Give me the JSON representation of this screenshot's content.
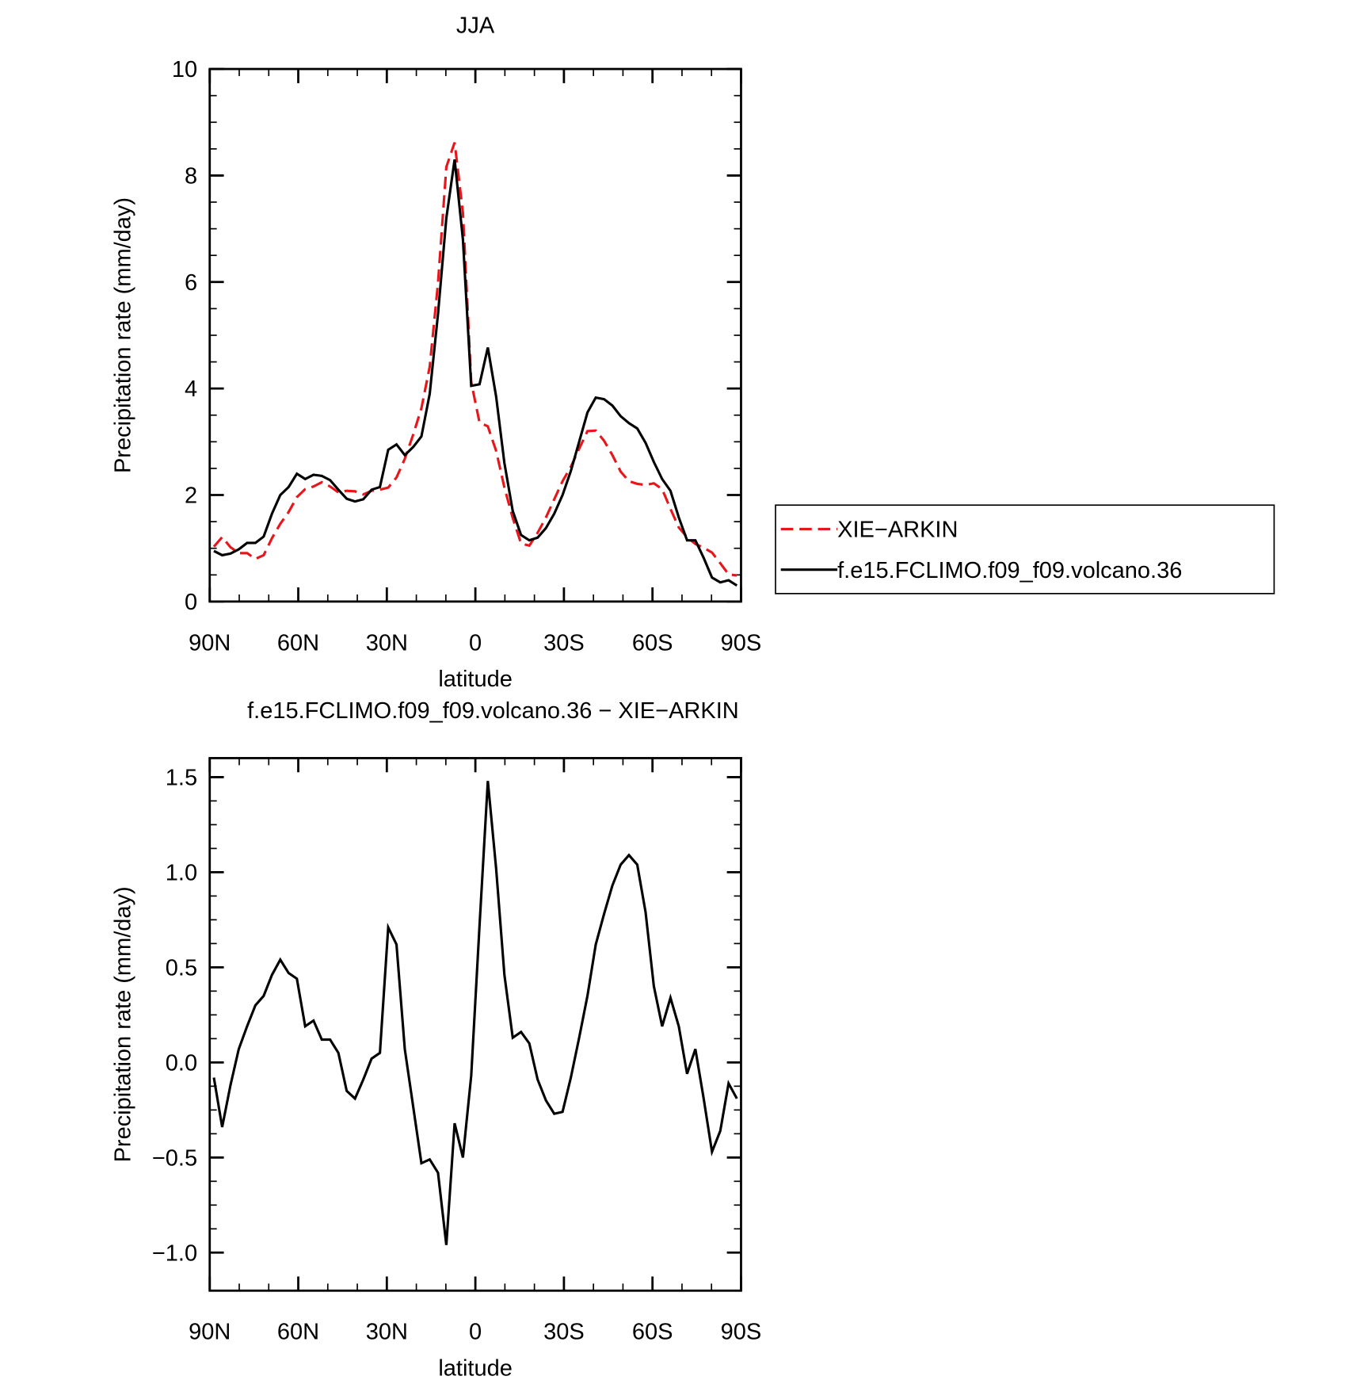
{
  "chart_data": [
    {
      "type": "line",
      "title": "JJA",
      "x_label": "latitude",
      "y_label": "Precipitation rate (mm/day)",
      "x": [
        88.59,
        85.78,
        82.97,
        80.16,
        77.34,
        74.53,
        71.72,
        68.91,
        66.09,
        63.28,
        60.47,
        57.66,
        54.84,
        52.03,
        49.22,
        46.41,
        43.59,
        40.78,
        37.97,
        35.16,
        32.34,
        29.53,
        26.72,
        23.91,
        21.09,
        18.28,
        15.47,
        12.66,
        9.84,
        7.03,
        4.22,
        1.41,
        -1.41,
        -4.22,
        -7.03,
        -9.84,
        -12.66,
        -15.47,
        -18.28,
        -21.09,
        -23.91,
        -26.72,
        -29.53,
        -32.34,
        -35.16,
        -37.97,
        -40.78,
        -43.59,
        -46.41,
        -49.22,
        -52.03,
        -54.84,
        -57.66,
        -60.47,
        -63.28,
        -66.09,
        -68.91,
        -71.72,
        -74.53,
        -77.34,
        -80.16,
        -82.97,
        -85.78,
        -88.59
      ],
      "xlim": [
        90,
        -90
      ],
      "xticks": [
        {
          "value": 90,
          "label": "90N"
        },
        {
          "value": 60,
          "label": "60N"
        },
        {
          "value": 30,
          "label": "30N"
        },
        0,
        {
          "value": -30,
          "label": "30S"
        },
        {
          "value": -60,
          "label": "60S"
        },
        {
          "value": -90,
          "label": "90S"
        }
      ],
      "ylim": [
        0,
        10
      ],
      "yticks": [
        0,
        2,
        4,
        6,
        8,
        10
      ],
      "series": [
        {
          "name": "XIE−ARKIN",
          "color": "#e8161b",
          "line_style": "dashed",
          "values": [
            1.03,
            1.21,
            1.02,
            0.91,
            0.91,
            0.8,
            0.87,
            1.19,
            1.46,
            1.68,
            1.96,
            2.11,
            2.16,
            2.24,
            2.16,
            2.05,
            2.08,
            2.07,
            2.01,
            2.08,
            2.1,
            2.14,
            2.33,
            2.68,
            3.13,
            3.63,
            4.41,
            5.98,
            8.16,
            8.62,
            7.3,
            4.12,
            3.36,
            3.29,
            2.83,
            2.14,
            1.57,
            1.09,
            1.05,
            1.29,
            1.58,
            1.92,
            2.26,
            2.53,
            2.87,
            3.2,
            3.21,
            3.02,
            2.75,
            2.44,
            2.26,
            2.21,
            2.19,
            2.22,
            2.11,
            1.74,
            1.39,
            1.21,
            1.08,
            1.01,
            0.92,
            0.72,
            0.51,
            0.49
          ]
        },
        {
          "name": "f.e15.FCLIMO.f09_f09.volcano.36",
          "color": "#000000",
          "line_style": "solid",
          "values": [
            0.95,
            0.87,
            0.9,
            0.98,
            1.1,
            1.1,
            1.22,
            1.65,
            2.0,
            2.15,
            2.4,
            2.3,
            2.38,
            2.36,
            2.28,
            2.1,
            1.93,
            1.88,
            1.92,
            2.1,
            2.15,
            2.85,
            2.95,
            2.75,
            2.9,
            3.1,
            3.9,
            5.4,
            7.2,
            8.3,
            6.8,
            4.05,
            4.08,
            4.77,
            3.85,
            2.6,
            1.7,
            1.25,
            1.15,
            1.2,
            1.38,
            1.65,
            2.0,
            2.45,
            3.0,
            3.55,
            3.83,
            3.8,
            3.68,
            3.48,
            3.35,
            3.25,
            2.98,
            2.62,
            2.3,
            2.08,
            1.58,
            1.15,
            1.15,
            0.82,
            0.45,
            0.36,
            0.4,
            0.3
          ]
        }
      ]
    },
    {
      "type": "line",
      "title": "f.e15.FCLIMO.f09_f09.volcano.36 − XIE−ARKIN",
      "x_label": "latitude",
      "y_label": "Precipitation rate (mm/day)",
      "x": [
        88.59,
        85.78,
        82.97,
        80.16,
        77.34,
        74.53,
        71.72,
        68.91,
        66.09,
        63.28,
        60.47,
        57.66,
        54.84,
        52.03,
        49.22,
        46.41,
        43.59,
        40.78,
        37.97,
        35.16,
        32.34,
        29.53,
        26.72,
        23.91,
        21.09,
        18.28,
        15.47,
        12.66,
        9.84,
        7.03,
        4.22,
        1.41,
        -1.41,
        -4.22,
        -7.03,
        -9.84,
        -12.66,
        -15.47,
        -18.28,
        -21.09,
        -23.91,
        -26.72,
        -29.53,
        -32.34,
        -35.16,
        -37.97,
        -40.78,
        -43.59,
        -46.41,
        -49.22,
        -52.03,
        -54.84,
        -57.66,
        -60.47,
        -63.28,
        -66.09,
        -68.91,
        -71.72,
        -74.53,
        -77.34,
        -80.16,
        -82.97,
        -85.78,
        -88.59
      ],
      "xlim": [
        90,
        -90
      ],
      "xticks": [
        {
          "value": 90,
          "label": "90N"
        },
        {
          "value": 60,
          "label": "60N"
        },
        {
          "value": 30,
          "label": "30N"
        },
        0,
        {
          "value": -30,
          "label": "30S"
        },
        {
          "value": -60,
          "label": "60S"
        },
        {
          "value": -90,
          "label": "90S"
        }
      ],
      "ylim": [
        -1.2,
        1.6
      ],
      "yticks": [
        {
          "value": -1,
          "label": "−1.0"
        },
        {
          "value": -0.5,
          "label": "−0.5"
        },
        {
          "value": 0,
          "label": "0.0"
        },
        0.5,
        {
          "value": 1,
          "label": "1.0"
        },
        1.5
      ],
      "series": [
        {
          "color": "#000000",
          "line_style": "solid",
          "values": [
            -0.08,
            -0.34,
            -0.12,
            0.07,
            0.19,
            0.3,
            0.35,
            0.46,
            0.54,
            0.47,
            0.44,
            0.19,
            0.22,
            0.12,
            0.12,
            0.05,
            -0.15,
            -0.19,
            -0.09,
            0.02,
            0.05,
            0.71,
            0.62,
            0.07,
            -0.23,
            -0.53,
            -0.51,
            -0.58,
            -0.96,
            -0.32,
            -0.5,
            -0.07,
            0.72,
            1.48,
            1.02,
            0.46,
            0.13,
            0.16,
            0.1,
            -0.09,
            -0.2,
            -0.27,
            -0.26,
            -0.08,
            0.13,
            0.35,
            0.62,
            0.78,
            0.93,
            1.04,
            1.09,
            1.04,
            0.79,
            0.4,
            0.19,
            0.34,
            0.19,
            -0.06,
            0.07,
            -0.19,
            -0.47,
            -0.36,
            -0.11,
            -0.19
          ]
        }
      ]
    }
  ]
}
